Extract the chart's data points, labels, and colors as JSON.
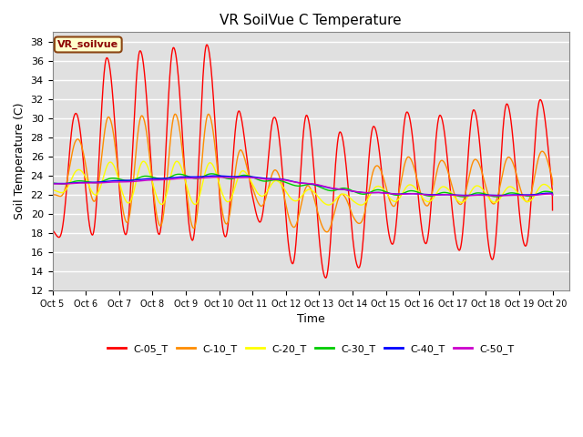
{
  "title": "VR SoilVue C Temperature",
  "xlabel": "Time",
  "ylabel": "Soil Temperature (C)",
  "xlim_days": [
    5.0,
    20.5
  ],
  "ylim": [
    12,
    39
  ],
  "yticks": [
    12,
    14,
    16,
    18,
    20,
    22,
    24,
    26,
    28,
    30,
    32,
    34,
    36,
    38
  ],
  "xtick_labels": [
    "Oct 5",
    "Oct 6",
    "Oct 7",
    "Oct 8",
    "Oct 9",
    "Oct 10",
    "Oct 11",
    "Oct 12",
    "Oct 13",
    "Oct 14",
    "Oct 15",
    "Oct 16",
    "Oct 17",
    "Oct 18",
    "Oct 19",
    "Oct 20"
  ],
  "xtick_positions": [
    5,
    6,
    7,
    8,
    9,
    10,
    11,
    12,
    13,
    14,
    15,
    16,
    17,
    18,
    19,
    20
  ],
  "series": {
    "C-05_T": {
      "color": "#ff0000",
      "linewidth": 1.0
    },
    "C-10_T": {
      "color": "#ff8c00",
      "linewidth": 1.0
    },
    "C-20_T": {
      "color": "#ffff00",
      "linewidth": 1.0
    },
    "C-30_T": {
      "color": "#00cc00",
      "linewidth": 1.0
    },
    "C-40_T": {
      "color": "#0000ff",
      "linewidth": 1.0
    },
    "C-50_T": {
      "color": "#cc00cc",
      "linewidth": 1.0
    }
  },
  "legend_label": "VR_soilvue",
  "plot_bg_color": "#e0e0e0",
  "fig_bg_color": "#ffffff",
  "grid_color": "#ffffff",
  "title_fontsize": 11,
  "axis_label_fontsize": 9,
  "tick_fontsize": 8
}
